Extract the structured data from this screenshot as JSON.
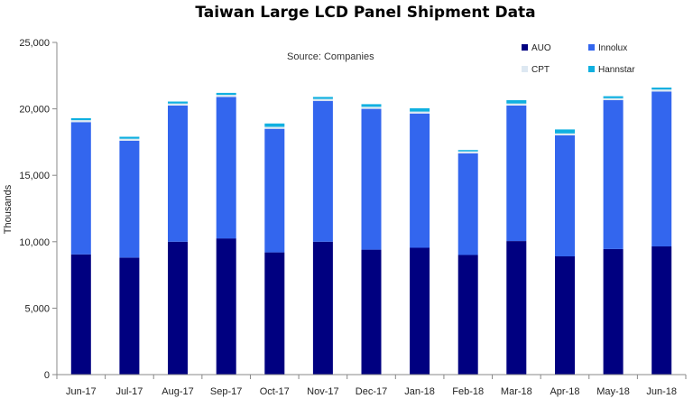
{
  "chart_data": {
    "type": "bar",
    "stacked": true,
    "title": "Taiwan Large LCD Panel Shipment Data",
    "annotation": "Source: Companies",
    "xlabel": "",
    "ylabel": "Thousands",
    "ylim": [
      0,
      25000
    ],
    "yticks": [
      0,
      5000,
      10000,
      15000,
      20000,
      25000
    ],
    "ytick_labels": [
      "0",
      "5,000",
      "10,000",
      "15,000",
      "20,000",
      "25,000"
    ],
    "grid": false,
    "legend_position": "top-right",
    "categories": [
      "Jun-17",
      "Jul-17",
      "Aug-17",
      "Sep-17",
      "Oct-17",
      "Nov-17",
      "Dec-17",
      "Jan-18",
      "Feb-18",
      "Mar-18",
      "Apr-18",
      "May-18",
      "Jun-18"
    ],
    "series": [
      {
        "name": "AUO",
        "color": "#000080",
        "values": [
          9050,
          8800,
          10000,
          10250,
          9200,
          10000,
          9400,
          9550,
          9000,
          10050,
          8900,
          9450,
          9650
        ]
      },
      {
        "name": "Innolux",
        "color": "#3366ee",
        "values": [
          9950,
          8800,
          10250,
          10650,
          9300,
          10600,
          10600,
          10100,
          7650,
          10200,
          9100,
          11200,
          11650
        ]
      },
      {
        "name": "CPT",
        "color": "#dde8f2",
        "values": [
          150,
          150,
          150,
          150,
          150,
          150,
          150,
          150,
          150,
          150,
          150,
          150,
          150
        ]
      },
      {
        "name": "Hannstar",
        "color": "#10b0e0",
        "values": [
          150,
          150,
          150,
          150,
          250,
          150,
          200,
          250,
          100,
          250,
          300,
          150,
          150
        ]
      }
    ]
  }
}
